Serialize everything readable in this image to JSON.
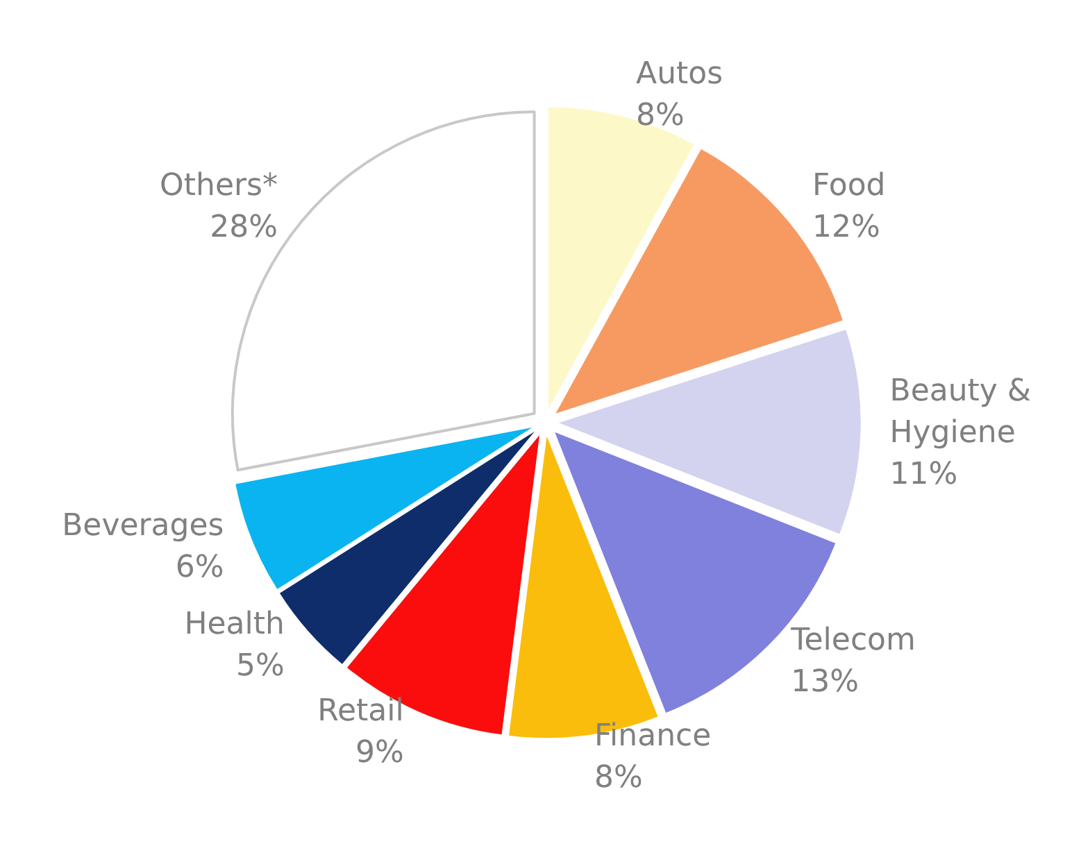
{
  "chart_data": {
    "type": "pie",
    "categories": [
      "Autos",
      "Food",
      "Beauty & Hygiene",
      "Telecom",
      "Finance",
      "Retail",
      "Health",
      "Beverages",
      "Others*"
    ],
    "values": [
      8,
      12,
      11,
      13,
      8,
      9,
      5,
      6,
      28
    ],
    "value_labels": [
      "8%",
      "12%",
      "11%",
      "13%",
      "8%",
      "9%",
      "5%",
      "6%",
      "28%"
    ],
    "colors": [
      "#fdf8c8",
      "#f79a62",
      "#d3d3f0",
      "#8080dd",
      "#fbbd0b",
      "#fb0d0d",
      "#0f2d6b",
      "#0ab4f0",
      "#ffffff"
    ],
    "legend": false
  }
}
